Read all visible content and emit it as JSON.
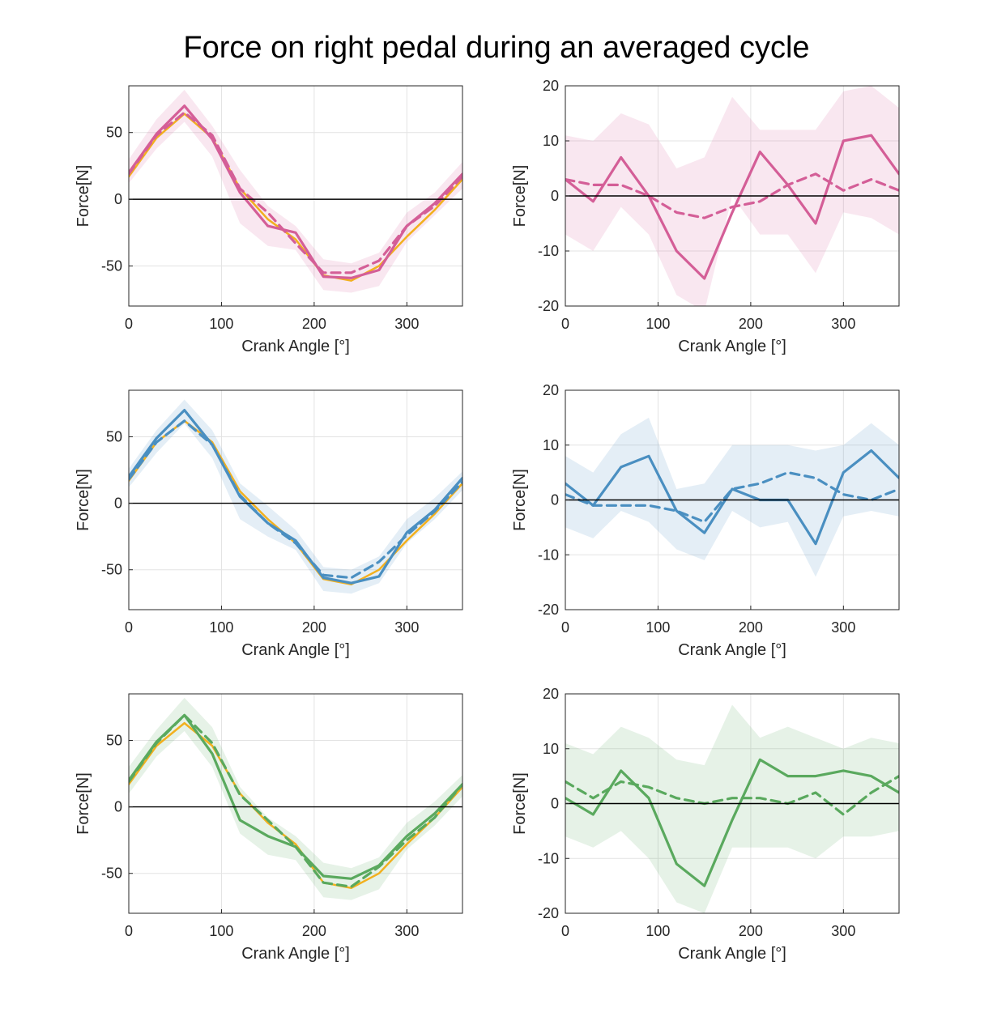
{
  "title": "Force on right pedal during an averaged cycle",
  "colors": {
    "pink": "#d45e97",
    "blue": "#4a8fc1",
    "green": "#5aa95e",
    "orange": "#f2b01e",
    "grid": "#e3e3e3",
    "axis": "#262626"
  },
  "chart_data": [
    {
      "type": "line",
      "xlabel": "Crank Angle [°]",
      "ylabel": "Force[N]",
      "xlim": [
        0,
        360
      ],
      "ylim": [
        -80,
        85
      ],
      "xticks": [
        0,
        100,
        200,
        300
      ],
      "yticks": [
        -50,
        0,
        50
      ],
      "grid": true,
      "zero_line": true,
      "color": "pink",
      "x": [
        0,
        30,
        60,
        90,
        120,
        150,
        180,
        210,
        240,
        270,
        300,
        330,
        360
      ],
      "series": [
        {
          "style": "band",
          "color": "pink",
          "upper": [
            30,
            60,
            82,
            55,
            22,
            -5,
            -20,
            -45,
            -48,
            -40,
            -10,
            5,
            28
          ],
          "lower": [
            12,
            38,
            58,
            32,
            -18,
            -35,
            -38,
            -68,
            -70,
            -65,
            -32,
            -12,
            8
          ]
        },
        {
          "style": "solid",
          "color": "orange",
          "values": [
            17,
            46,
            64,
            46,
            8,
            -15,
            -30,
            -57,
            -61,
            -50,
            -28,
            -8,
            15
          ]
        },
        {
          "style": "dashed",
          "color": "pink",
          "values": [
            19,
            48,
            65,
            48,
            8,
            -10,
            -33,
            -55,
            -55,
            -46,
            -20,
            -5,
            17
          ]
        },
        {
          "style": "solid",
          "color": "pink",
          "values": [
            20,
            49,
            70,
            45,
            5,
            -20,
            -25,
            -58,
            -59,
            -53,
            -20,
            -3,
            19
          ]
        }
      ]
    },
    {
      "type": "line",
      "xlabel": "Crank Angle [°]",
      "ylabel": "Force[N]",
      "xlim": [
        0,
        360
      ],
      "ylim": [
        -20,
        20
      ],
      "xticks": [
        0,
        100,
        200,
        300
      ],
      "yticks": [
        -20,
        -10,
        0,
        10,
        20
      ],
      "grid": true,
      "zero_line": true,
      "color": "pink",
      "x": [
        0,
        30,
        60,
        90,
        120,
        150,
        180,
        210,
        240,
        270,
        300,
        330,
        360
      ],
      "series": [
        {
          "style": "band",
          "color": "pink",
          "upper": [
            11,
            10,
            15,
            13,
            5,
            7,
            18,
            12,
            12,
            12,
            19,
            20,
            16
          ],
          "lower": [
            -7,
            -10,
            -2,
            -7,
            -18,
            -21,
            0,
            -7,
            -7,
            -14,
            -3,
            -4,
            -7
          ]
        },
        {
          "style": "dashed",
          "color": "pink",
          "values": [
            3,
            2,
            2,
            0,
            -3,
            -4,
            -2,
            -1,
            2,
            4,
            1,
            3,
            1
          ]
        },
        {
          "style": "solid",
          "color": "pink",
          "values": [
            3,
            -1,
            7,
            0,
            -10,
            -15,
            -3,
            8,
            2,
            -5,
            10,
            11,
            4
          ]
        }
      ]
    },
    {
      "type": "line",
      "xlabel": "Crank Angle [°]",
      "ylabel": "Force[N]",
      "xlim": [
        0,
        360
      ],
      "ylim": [
        -80,
        85
      ],
      "xticks": [
        0,
        100,
        200,
        300
      ],
      "yticks": [
        -50,
        0,
        50
      ],
      "grid": true,
      "zero_line": true,
      "color": "blue",
      "x": [
        0,
        30,
        60,
        90,
        120,
        150,
        180,
        210,
        240,
        270,
        300,
        330,
        360
      ],
      "series": [
        {
          "style": "band",
          "color": "blue",
          "upper": [
            26,
            55,
            78,
            55,
            15,
            -2,
            -20,
            -48,
            -50,
            -40,
            -12,
            4,
            24
          ],
          "lower": [
            12,
            38,
            60,
            34,
            -12,
            -25,
            -35,
            -66,
            -68,
            -60,
            -30,
            -12,
            10
          ]
        },
        {
          "style": "solid",
          "color": "orange",
          "values": [
            17,
            46,
            62,
            46,
            9,
            -12,
            -30,
            -57,
            -61,
            -50,
            -28,
            -8,
            15
          ]
        },
        {
          "style": "dashed",
          "color": "blue",
          "values": [
            18,
            46,
            62,
            44,
            6,
            -15,
            -30,
            -54,
            -56,
            -44,
            -24,
            -6,
            16
          ]
        },
        {
          "style": "solid",
          "color": "blue",
          "values": [
            20,
            49,
            70,
            44,
            5,
            -15,
            -28,
            -56,
            -60,
            -55,
            -22,
            -5,
            19
          ]
        }
      ]
    },
    {
      "type": "line",
      "xlabel": "Crank Angle [°]",
      "ylabel": "Force[N]",
      "xlim": [
        0,
        360
      ],
      "ylim": [
        -20,
        20
      ],
      "xticks": [
        0,
        100,
        200,
        300
      ],
      "yticks": [
        -20,
        -10,
        0,
        10,
        20
      ],
      "grid": true,
      "zero_line": true,
      "color": "blue",
      "x": [
        0,
        30,
        60,
        90,
        120,
        150,
        180,
        210,
        240,
        270,
        300,
        330,
        360
      ],
      "series": [
        {
          "style": "band",
          "color": "blue",
          "upper": [
            8,
            5,
            12,
            15,
            2,
            3,
            10,
            10,
            10,
            9,
            10,
            14,
            10
          ],
          "lower": [
            -5,
            -7,
            -2,
            -4,
            -9,
            -11,
            -2,
            -5,
            -4,
            -14,
            -3,
            -2,
            -3
          ]
        },
        {
          "style": "dashed",
          "color": "blue",
          "values": [
            1,
            -1,
            -1,
            -1,
            -2,
            -4,
            2,
            3,
            5,
            4,
            1,
            0,
            2
          ]
        },
        {
          "style": "solid",
          "color": "blue",
          "values": [
            3,
            -1,
            6,
            8,
            -2,
            -6,
            2,
            0,
            0,
            -8,
            5,
            9,
            4
          ]
        }
      ]
    },
    {
      "type": "line",
      "xlabel": "Crank Angle [°]",
      "ylabel": "Force[N]",
      "xlim": [
        0,
        360
      ],
      "ylim": [
        -80,
        85
      ],
      "xticks": [
        0,
        100,
        200,
        300
      ],
      "yticks": [
        -50,
        0,
        50
      ],
      "grid": true,
      "zero_line": true,
      "color": "green",
      "x": [
        0,
        30,
        60,
        90,
        120,
        150,
        180,
        210,
        240,
        270,
        300,
        330,
        360
      ],
      "series": [
        {
          "style": "band",
          "color": "green",
          "upper": [
            30,
            58,
            82,
            60,
            15,
            -8,
            -22,
            -42,
            -46,
            -38,
            -12,
            4,
            24
          ],
          "lower": [
            10,
            38,
            57,
            30,
            -20,
            -36,
            -40,
            -68,
            -70,
            -62,
            -32,
            -14,
            8
          ]
        },
        {
          "style": "solid",
          "color": "orange",
          "values": [
            17,
            46,
            63,
            46,
            10,
            -12,
            -28,
            -57,
            -61,
            -50,
            -28,
            -8,
            15
          ]
        },
        {
          "style": "dashed",
          "color": "green",
          "values": [
            19,
            48,
            69,
            48,
            9,
            -10,
            -30,
            -57,
            -60,
            -45,
            -25,
            -8,
            17
          ]
        },
        {
          "style": "solid",
          "color": "green",
          "values": [
            20,
            49,
            69,
            40,
            -10,
            -22,
            -30,
            -52,
            -54,
            -44,
            -22,
            -5,
            17
          ]
        }
      ]
    },
    {
      "type": "line",
      "xlabel": "Crank Angle [°]",
      "ylabel": "Force[N]",
      "xlim": [
        0,
        360
      ],
      "ylim": [
        -20,
        20
      ],
      "xticks": [
        0,
        100,
        200,
        300
      ],
      "yticks": [
        -20,
        -10,
        0,
        10,
        20
      ],
      "grid": true,
      "zero_line": true,
      "color": "green",
      "x": [
        0,
        30,
        60,
        90,
        120,
        150,
        180,
        210,
        240,
        270,
        300,
        330,
        360
      ],
      "series": [
        {
          "style": "band",
          "color": "green",
          "upper": [
            11,
            9,
            14,
            12,
            8,
            7,
            18,
            12,
            14,
            12,
            10,
            12,
            11
          ],
          "lower": [
            -6,
            -8,
            -5,
            -10,
            -18,
            -20,
            -8,
            -8,
            -8,
            -10,
            -6,
            -6,
            -5
          ]
        },
        {
          "style": "dashed",
          "color": "green",
          "values": [
            4,
            1,
            4,
            3,
            1,
            0,
            1,
            1,
            0,
            2,
            -2,
            2,
            5
          ]
        },
        {
          "style": "solid",
          "color": "green",
          "values": [
            1,
            -2,
            6,
            1,
            -11,
            -15,
            -3,
            8,
            5,
            5,
            6,
            5,
            2
          ]
        }
      ]
    }
  ]
}
